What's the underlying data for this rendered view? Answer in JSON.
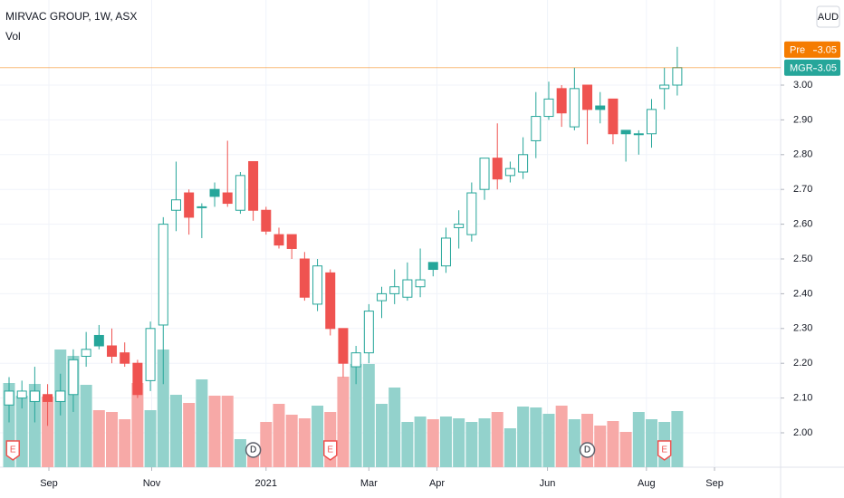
{
  "chart_data": {
    "type": "candlestick",
    "title": "MIRVAC GROUP, 1W, ASX",
    "volume_label": "Vol",
    "currency": "AUD",
    "up_color": "#26a69a",
    "down_color": "#ef5350",
    "volume_up_color": "#93d2cc",
    "volume_down_color": "#f7a9a7",
    "open": [
      2.08,
      2.1,
      2.09,
      2.11,
      2.09,
      2.11,
      2.22,
      2.28,
      2.25,
      2.23,
      2.2,
      2.15,
      2.31,
      2.64,
      2.69,
      2.65,
      2.7,
      2.69,
      2.64,
      2.78,
      2.64,
      2.57,
      2.57,
      2.5,
      2.37,
      2.46,
      2.3,
      2.19,
      2.23,
      2.38,
      2.4,
      2.39,
      2.42,
      2.49,
      2.48,
      2.59,
      2.57,
      2.7,
      2.79,
      2.74,
      2.75,
      2.84,
      2.91,
      2.99,
      2.88,
      3.0,
      2.94,
      2.96,
      2.87,
      2.86,
      2.86,
      2.99,
      3.0
    ],
    "high": [
      2.16,
      2.15,
      2.19,
      2.14,
      2.17,
      2.24,
      2.29,
      2.31,
      2.3,
      2.26,
      2.21,
      2.32,
      2.62,
      2.78,
      2.7,
      2.66,
      2.72,
      2.84,
      2.75,
      2.78,
      2.65,
      2.59,
      2.57,
      2.52,
      2.5,
      2.47,
      2.3,
      2.25,
      2.37,
      2.42,
      2.47,
      2.49,
      2.53,
      2.49,
      2.59,
      2.64,
      2.72,
      2.79,
      2.89,
      2.78,
      2.85,
      2.98,
      3.01,
      3.0,
      3.05,
      3.0,
      2.98,
      2.96,
      2.87,
      2.87,
      2.96,
      3.05,
      3.11
    ],
    "low": [
      2.03,
      2.07,
      2.03,
      2.02,
      2.05,
      2.06,
      2.19,
      2.24,
      2.2,
      2.19,
      2.1,
      2.12,
      2.14,
      2.58,
      2.57,
      2.56,
      2.65,
      2.65,
      2.63,
      2.61,
      2.57,
      2.53,
      2.5,
      2.38,
      2.35,
      2.28,
      2.16,
      2.14,
      2.2,
      2.33,
      2.37,
      2.38,
      2.39,
      2.45,
      2.46,
      2.53,
      2.55,
      2.67,
      2.7,
      2.72,
      2.73,
      2.79,
      2.9,
      2.88,
      2.87,
      2.83,
      2.89,
      2.83,
      2.78,
      2.8,
      2.82,
      2.93,
      2.97
    ],
    "close": [
      2.12,
      2.12,
      2.12,
      2.09,
      2.12,
      2.21,
      2.24,
      2.25,
      2.22,
      2.2,
      2.11,
      2.3,
      2.6,
      2.67,
      2.62,
      2.65,
      2.68,
      2.66,
      2.74,
      2.64,
      2.58,
      2.54,
      2.53,
      2.39,
      2.48,
      2.3,
      2.2,
      2.23,
      2.35,
      2.4,
      2.42,
      2.44,
      2.44,
      2.47,
      2.56,
      2.6,
      2.69,
      2.79,
      2.73,
      2.76,
      2.8,
      2.91,
      2.96,
      2.92,
      2.99,
      2.93,
      2.93,
      2.86,
      2.86,
      2.86,
      2.93,
      3.0,
      3.05
    ],
    "volume": [
      93,
      79,
      92,
      78,
      130,
      123,
      91,
      63,
      61,
      53,
      93,
      63,
      130,
      80,
      71,
      97,
      79,
      79,
      31,
      25,
      50,
      70,
      58,
      54,
      68,
      61,
      100,
      114,
      114,
      70,
      88,
      50,
      56,
      53,
      56,
      54,
      50,
      54,
      61,
      43,
      67,
      66,
      59,
      68,
      53,
      59,
      46,
      51,
      39,
      61,
      53,
      50,
      62
    ],
    "volume_lim": [
      0,
      400
    ],
    "ylim": [
      1.88,
      3.2
    ],
    "yticks": [
      {
        "value": 2.0,
        "label": "2.00"
      },
      {
        "value": 2.1,
        "label": "2.10"
      },
      {
        "value": 2.2,
        "label": "2.20"
      },
      {
        "value": 2.3,
        "label": "2.30"
      },
      {
        "value": 2.4,
        "label": "2.40"
      },
      {
        "value": 2.5,
        "label": "2.50"
      },
      {
        "value": 2.6,
        "label": "2.60"
      },
      {
        "value": 2.7,
        "label": "2.70"
      },
      {
        "value": 2.8,
        "label": "2.80"
      },
      {
        "value": 2.9,
        "label": "2.90"
      },
      {
        "value": 3.0,
        "label": "3.00"
      }
    ],
    "xticks": [
      {
        "value": 3.1,
        "label": "Sep"
      },
      {
        "value": 11.1,
        "label": "Nov"
      },
      {
        "value": 20,
        "label": "2021"
      },
      {
        "value": 28,
        "label": "Mar"
      },
      {
        "value": 33.3,
        "label": "Apr"
      },
      {
        "value": 41.9,
        "label": "Jun"
      },
      {
        "value": 49.6,
        "label": "Aug"
      },
      {
        "value": 54.9,
        "label": "Sep"
      }
    ],
    "events": [
      {
        "index": 0.3,
        "label": "E"
      },
      {
        "index": 19,
        "label": "D"
      },
      {
        "index": 25,
        "label": "E"
      },
      {
        "index": 45,
        "label": "D"
      },
      {
        "index": 51,
        "label": "E"
      }
    ],
    "price_lines": [
      {
        "name": "Pre",
        "value": 3.05,
        "color": "#f57c00"
      },
      {
        "name": "MGR",
        "value": 3.05,
        "color": "#26a69a"
      }
    ],
    "grid": true
  }
}
